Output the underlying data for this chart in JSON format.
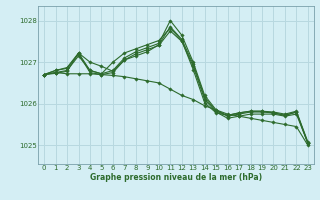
{
  "title": "Graphe pression niveau de la mer (hPa)",
  "background_color": "#d4eef4",
  "grid_color": "#b8d8e0",
  "line_color": "#2d6b2d",
  "marker_color": "#2d6b2d",
  "ylim": [
    1024.55,
    1028.35
  ],
  "yticks": [
    1025,
    1026,
    1027,
    1028
  ],
  "xlim": [
    -0.5,
    23.5
  ],
  "xticks": [
    0,
    1,
    2,
    3,
    4,
    5,
    6,
    7,
    8,
    9,
    10,
    11,
    12,
    13,
    14,
    15,
    16,
    17,
    18,
    19,
    20,
    21,
    22,
    23
  ],
  "series": [
    [
      1026.7,
      1026.8,
      1026.85,
      1027.2,
      1026.75,
      1026.7,
      1026.75,
      1027.05,
      1027.2,
      1027.3,
      1027.4,
      1027.75,
      1027.5,
      1026.9,
      1026.1,
      1025.8,
      1025.65,
      1025.7,
      1025.75,
      1025.75,
      1025.75,
      1025.7,
      1025.75,
      1025.05
    ],
    [
      1026.7,
      1026.75,
      1026.8,
      1027.15,
      1026.8,
      1026.72,
      1026.8,
      1027.1,
      1027.25,
      1027.35,
      1027.45,
      1028.0,
      1027.65,
      1027.0,
      1026.2,
      1025.85,
      1025.7,
      1025.75,
      1025.8,
      1025.8,
      1025.78,
      1025.72,
      1025.8,
      1025.05
    ],
    [
      1026.7,
      1026.73,
      1026.78,
      1027.22,
      1027.0,
      1026.9,
      1026.78,
      1027.05,
      1027.15,
      1027.25,
      1027.42,
      1027.85,
      1027.55,
      1026.95,
      1026.15,
      1025.82,
      1025.72,
      1025.78,
      1025.82,
      1025.82,
      1025.8,
      1025.75,
      1025.82,
      1025.08
    ],
    [
      1026.7,
      1026.8,
      1026.87,
      1027.22,
      1026.8,
      1026.72,
      1027.0,
      1027.22,
      1027.32,
      1027.42,
      1027.52,
      1027.82,
      1027.52,
      1026.82,
      1026.02,
      1025.78,
      1025.72,
      1025.78,
      1025.82,
      1025.82,
      1025.78,
      1025.72,
      1025.8,
      1025.05
    ]
  ],
  "series_single": [
    1026.7,
    1026.75,
    1026.72,
    1026.72,
    1026.72,
    1026.7,
    1026.68,
    1026.65,
    1026.6,
    1026.55,
    1026.5,
    1026.35,
    1026.2,
    1026.1,
    1025.95,
    1025.85,
    1025.75,
    1025.7,
    1025.65,
    1025.6,
    1025.55,
    1025.5,
    1025.45,
    1025.0
  ]
}
